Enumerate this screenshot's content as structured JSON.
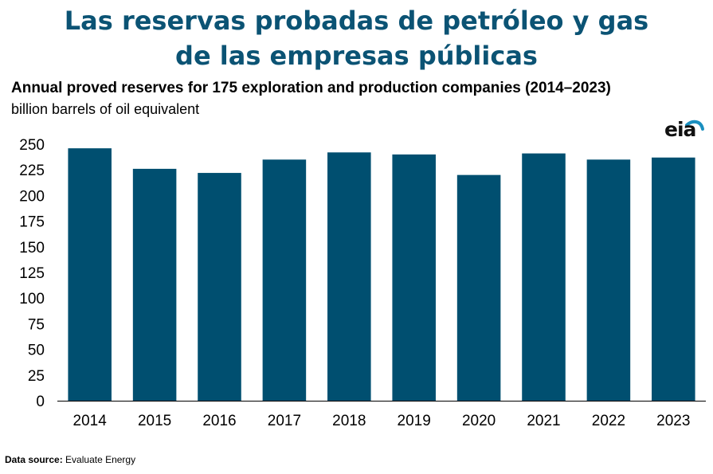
{
  "header": {
    "title_line1": "Las reservas probadas de petróleo y gas",
    "title_line2": "de las empresas públicas"
  },
  "colors": {
    "title": "#0b5374",
    "bar": "#004f70",
    "axis": "#000000"
  },
  "logo": {
    "text": "eia",
    "icon": "eia-swoosh-icon"
  },
  "source": {
    "label": "Data source:",
    "value": "Evaluate Energy"
  },
  "chart_data": {
    "type": "bar",
    "title": "Annual proved reserves for 175 exploration and production companies (2014–2023)",
    "subtitle": "billion barrels of oil equivalent",
    "categories": [
      "2014",
      "2015",
      "2016",
      "2017",
      "2018",
      "2019",
      "2020",
      "2021",
      "2022",
      "2023"
    ],
    "values": [
      246,
      226,
      222,
      235,
      242,
      240,
      220,
      241,
      235,
      237
    ],
    "ylim": [
      0,
      250
    ],
    "yticks": [
      0,
      25,
      50,
      75,
      100,
      125,
      150,
      175,
      200,
      225,
      250
    ],
    "grid": false,
    "legend": "none"
  }
}
